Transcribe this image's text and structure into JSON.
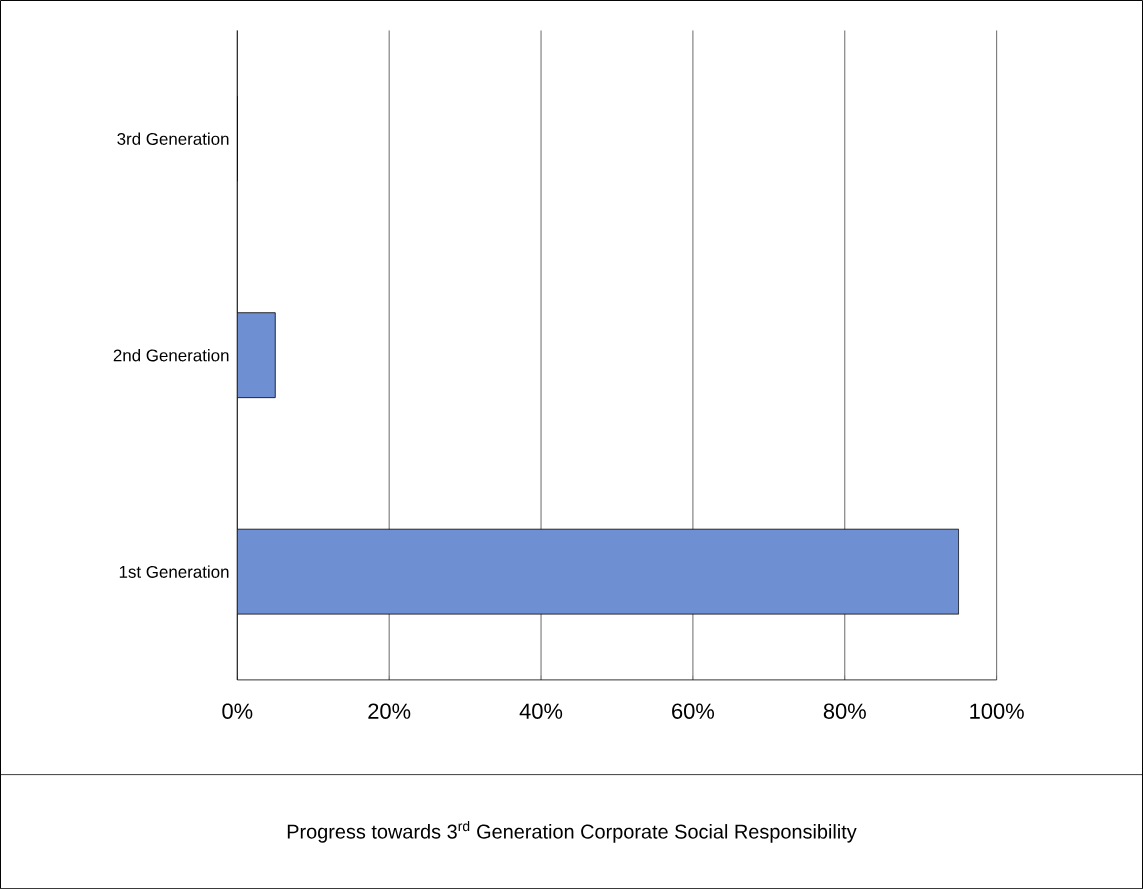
{
  "chart_data": {
    "type": "bar",
    "orientation": "horizontal",
    "categories": [
      "3rd Generation",
      "2nd Generation",
      "1st Generation"
    ],
    "values": [
      0,
      5,
      95
    ],
    "color": "#6f8fd3",
    "xlim": [
      0,
      100
    ],
    "xticks": [
      {
        "value": 0,
        "label": "0%"
      },
      {
        "value": 20,
        "label": "20%"
      },
      {
        "value": 40,
        "label": "40%"
      },
      {
        "value": 60,
        "label": "60%"
      },
      {
        "value": 80,
        "label": "80%"
      },
      {
        "value": 100,
        "label": "100%"
      }
    ],
    "grid": "x",
    "annotations": [
      "Progress towards 3$^{rd}$ Generation Corporate Social Responsibility"
    ]
  }
}
